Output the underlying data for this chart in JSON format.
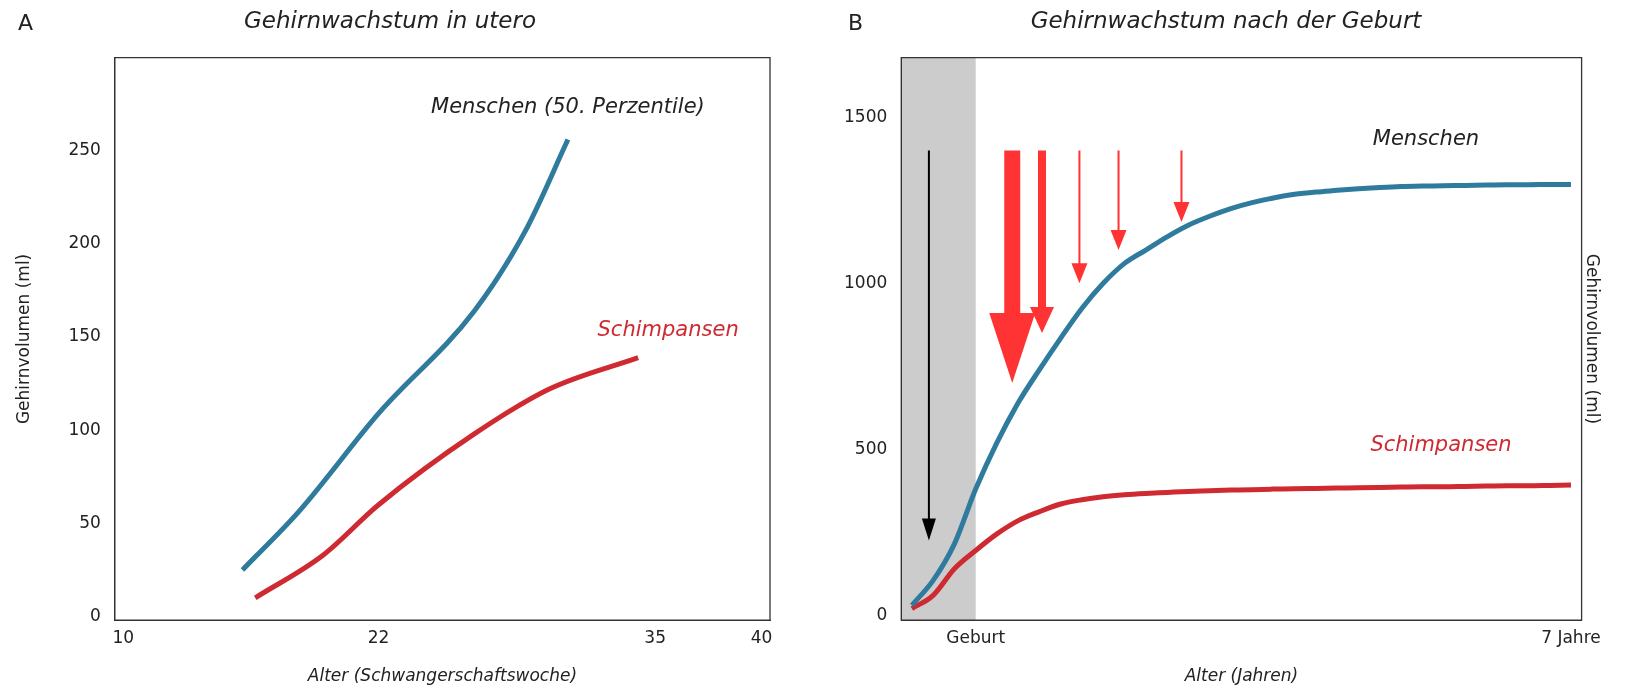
{
  "chart_data": [
    {
      "type": "line",
      "title": "Gehirnwachstum in utero",
      "xlabel": "Alter (Schwangerschaftswoche)",
      "ylabel": "Gehirnvolumen (ml)",
      "annotations": [
        "A"
      ],
      "xlim": [
        9.6,
        40.4
      ],
      "xticks": [
        10,
        22,
        35,
        40
      ],
      "ylim": [
        -2,
        300
      ],
      "yticks": [
        0,
        50,
        100,
        150,
        200,
        250
      ],
      "grid": false,
      "legend": false,
      "marker": "none",
      "line_style": "solid",
      "series": [
        {
          "name": "Menschen (50. Perzentile)",
          "color": "#2f7b9e",
          "x": [
            15.6,
            18.3,
            22,
            26.5,
            28.9,
            30.9
          ],
          "values": [
            25,
            57,
            109,
            164,
            207,
            256
          ]
        },
        {
          "name": "Schimpansen",
          "color": "#cf2a31",
          "x": [
            16.2,
            19.4,
            22,
            26.5,
            30,
            34.2
          ],
          "values": [
            10,
            33,
            60,
            98,
            122,
            139
          ]
        }
      ]
    },
    {
      "type": "line",
      "title": "Gehirnwachstum nach der Geburt",
      "xlabel": "Alter (Jahren)",
      "ylabel": "Gehirnvolumen (ml)",
      "annotations": [
        "B"
      ],
      "categories": [
        null,
        null,
        null,
        "Geburt",
        null,
        null,
        null,
        null,
        null,
        null,
        null,
        null,
        null,
        null,
        null,
        null,
        null,
        null,
        null,
        null,
        null,
        null,
        null,
        null,
        null,
        null,
        null,
        null,
        null,
        null,
        null,
        "7 Jahre"
      ],
      "ylim": [
        -15,
        1680
      ],
      "yticks": [
        0,
        500,
        1000,
        1500
      ],
      "grid": false,
      "legend": false,
      "marker": "none",
      "line_style": "solid",
      "series": [
        {
          "name": "Menschen",
          "color": "#2f7b9e",
          "values": [
            30,
            105,
            215,
            380,
            520,
            640,
            740,
            835,
            925,
            1000,
            1060,
            1100,
            1140,
            1175,
            1202,
            1225,
            1243,
            1257,
            1268,
            1275,
            1280,
            1285,
            1289,
            1292,
            1293,
            1294,
            1295,
            1296,
            1297,
            1297,
            1298,
            1298
          ]
        },
        {
          "name": "Schimpansen",
          "color": "#cf2a31",
          "values": [
            20,
            60,
            140,
            195,
            245,
            285,
            312,
            335,
            348,
            357,
            363,
            367,
            370,
            373,
            375,
            377,
            378,
            380,
            381,
            382,
            383,
            384,
            385,
            386,
            387,
            387,
            388,
            389,
            390,
            390,
            391,
            392
          ]
        }
      ]
    }
  ]
}
